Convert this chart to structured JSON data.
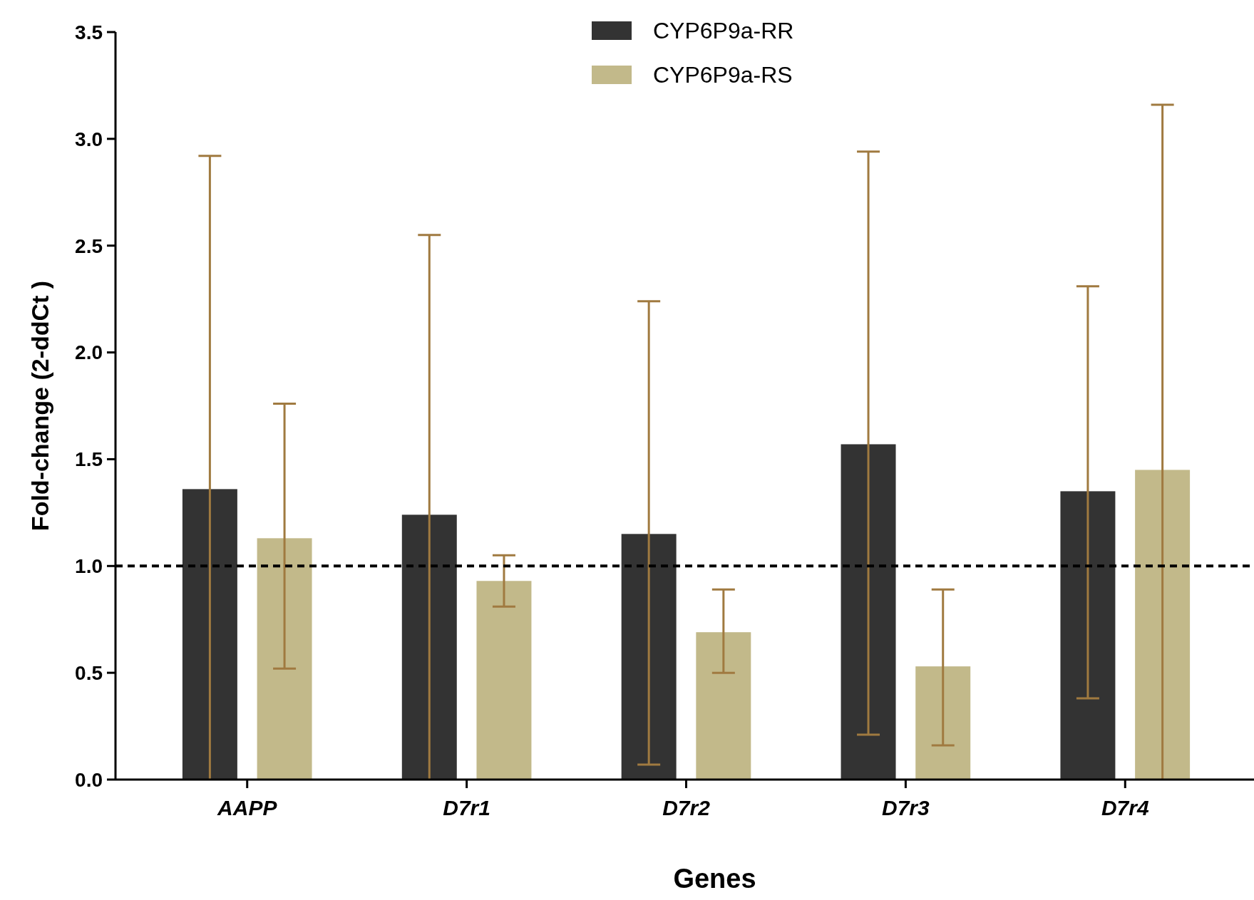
{
  "chart_data": {
    "type": "bar",
    "xlabel": "Genes",
    "ylabel": "Fold-change (2-ddCt )",
    "categories": [
      "AAPP",
      "D7r1",
      "D7r2",
      "D7r3",
      "D7r4"
    ],
    "series": [
      {
        "name": "CYP6P9a-RR",
        "color": "#333333",
        "values": [
          1.36,
          1.24,
          1.15,
          1.57,
          1.35
        ],
        "errors": [
          [
            0,
            2.92
          ],
          [
            0,
            2.55
          ],
          [
            0.07,
            2.24
          ],
          [
            0.21,
            2.94
          ],
          [
            0.38,
            2.31
          ]
        ]
      },
      {
        "name": "CYP6P9a-RS",
        "color": "#c2b98a",
        "values": [
          1.13,
          0.93,
          0.69,
          0.53,
          1.45
        ],
        "errors": [
          [
            0.52,
            1.76
          ],
          [
            0.81,
            1.05
          ],
          [
            0.5,
            0.89
          ],
          [
            0.16,
            0.89
          ],
          [
            0,
            3.16
          ]
        ]
      }
    ],
    "ylim": [
      0,
      3.5
    ],
    "yticks": [
      {
        "value": 0,
        "label": "0.0"
      },
      0.5,
      {
        "value": 1,
        "label": "1.0"
      },
      1.5,
      {
        "value": 2,
        "label": "2.0"
      },
      2.5,
      {
        "value": 3,
        "label": "3.0"
      },
      3.5
    ],
    "ref_lines": [
      {
        "axis": "y",
        "value": 1,
        "color": "#000000",
        "line_style": "dashed"
      }
    ],
    "legend": "top",
    "grid": false
  }
}
